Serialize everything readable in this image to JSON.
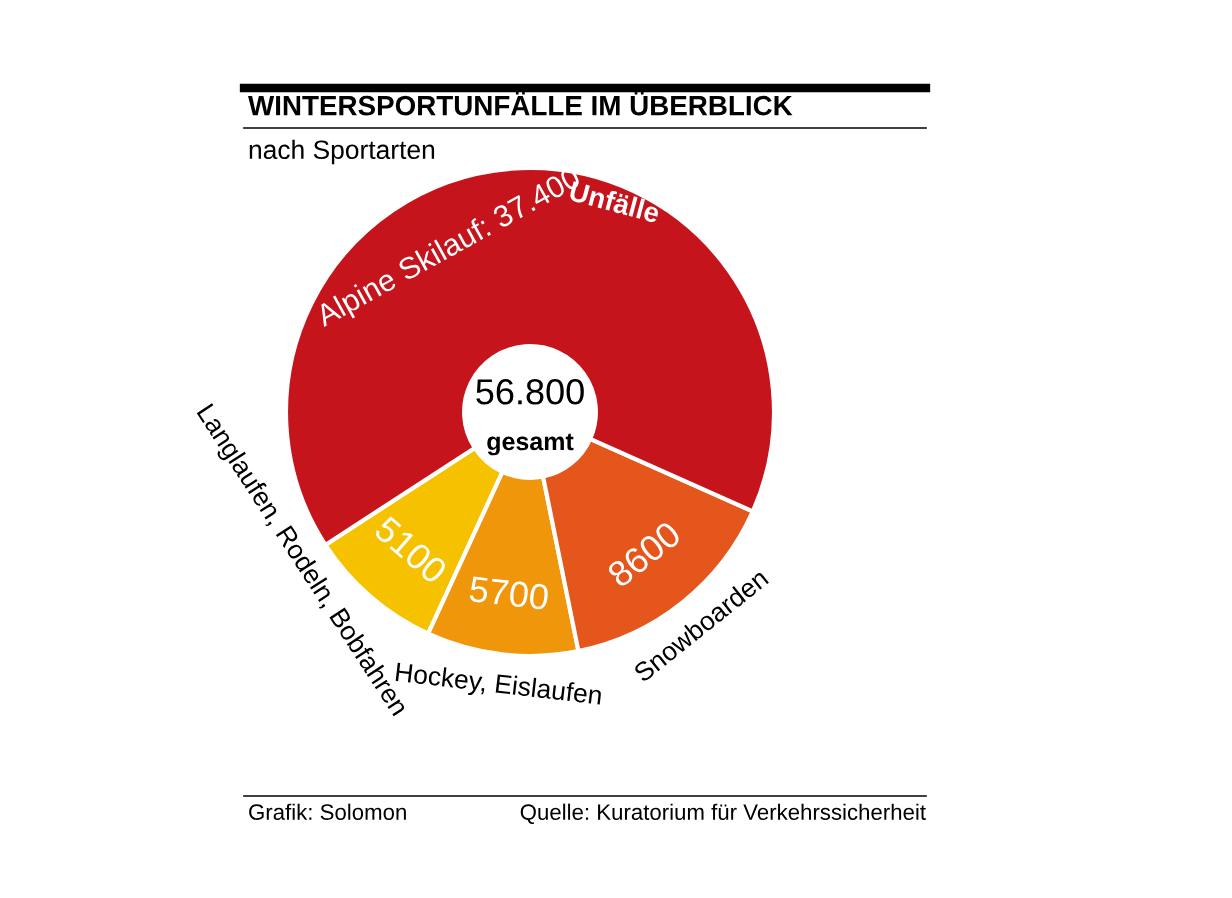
{
  "chart_data": {
    "type": "donut",
    "title": "WINTERSPORTUNFÄLLE IM ÜBERBLICK",
    "subtitle": "nach Sportarten",
    "categories": [
      "Langlaufen, Rodeln, Bobfahren",
      "Hockey, Eislaufen",
      "Snowboarden",
      "Alpine Skilauf"
    ],
    "values": [
      5100,
      5700,
      8600,
      37400
    ],
    "value_labels": [
      "5100",
      "5700",
      "8600",
      "37.400"
    ],
    "colors": [
      "#f6c200",
      "#f0960a",
      "#e5561c",
      "#c6141c"
    ],
    "annotations": [
      "Unfälle",
      "56.800",
      "gesamt",
      "Grafik: Solomon",
      "Quelle: Kuratorium für Verkehrssicherheit"
    ]
  }
}
